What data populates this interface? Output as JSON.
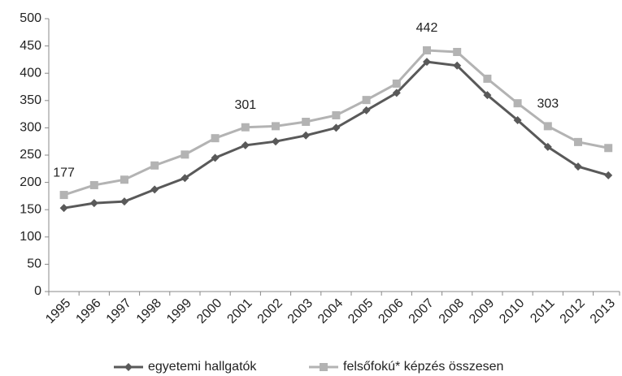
{
  "chart_data": {
    "type": "line",
    "categories": [
      "1995",
      "1996",
      "1997",
      "1998",
      "1999",
      "2000",
      "2001",
      "2002",
      "2003",
      "2004",
      "2005",
      "2006",
      "2007",
      "2008",
      "2009",
      "2010",
      "2011",
      "2012",
      "2013"
    ],
    "series": [
      {
        "name": "egyetemi hallgatók",
        "color": "#595959",
        "marker": "diamond",
        "values": [
          153,
          162,
          165,
          187,
          208,
          245,
          268,
          275,
          286,
          300,
          332,
          364,
          421,
          414,
          360,
          314,
          265,
          229,
          213
        ]
      },
      {
        "name": "felsőfokú* képzés összesen",
        "color": "#b3b3b3",
        "marker": "square",
        "values": [
          177,
          195,
          205,
          231,
          251,
          281,
          301,
          303,
          311,
          323,
          351,
          381,
          442,
          439,
          390,
          345,
          303,
          274,
          263
        ],
        "value_labels": [
          "177",
          null,
          null,
          null,
          null,
          null,
          "301",
          null,
          null,
          null,
          null,
          null,
          "442",
          null,
          null,
          null,
          "303",
          null,
          null
        ]
      }
    ],
    "ylim": [
      0,
      500
    ],
    "yticks": [
      0,
      50,
      100,
      150,
      200,
      250,
      300,
      350,
      400,
      450,
      500
    ],
    "grid": false,
    "legend": "bottom"
  }
}
